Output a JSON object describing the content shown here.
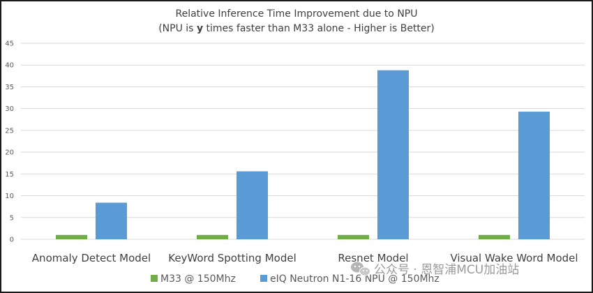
{
  "chart_data": {
    "type": "bar",
    "title": "Relative Inference Time Improvement due to NPU",
    "subtitle_prefix": "(NPU is ",
    "subtitle_bold": "y",
    "subtitle_suffix": " times faster than M33 alone - Higher is Better)",
    "categories": [
      "Anomaly Detect  Model",
      "KeyWord Spotting Model",
      "Resnet Model",
      "Visual Wake Word Model"
    ],
    "series": [
      {
        "name": "M33 @ 150Mhz",
        "color": "#70ad47",
        "values": [
          1,
          1,
          1,
          1
        ]
      },
      {
        "name": "eIQ Neutron N1-16 NPU @ 150Mhz",
        "color": "#5b9bd5",
        "values": [
          8.4,
          15.6,
          38.8,
          29.3
        ]
      }
    ],
    "ylim": [
      0,
      45
    ],
    "yticks": [
      "0",
      "5",
      "10",
      "15",
      "20",
      "25",
      "30",
      "35",
      "40",
      "45"
    ],
    "xlabel": "",
    "ylabel": "",
    "grid": true,
    "legend_position": "bottom"
  },
  "watermark": {
    "text": "公众号 · 恩智浦MCU加油站",
    "icon": "wechat-icon"
  }
}
